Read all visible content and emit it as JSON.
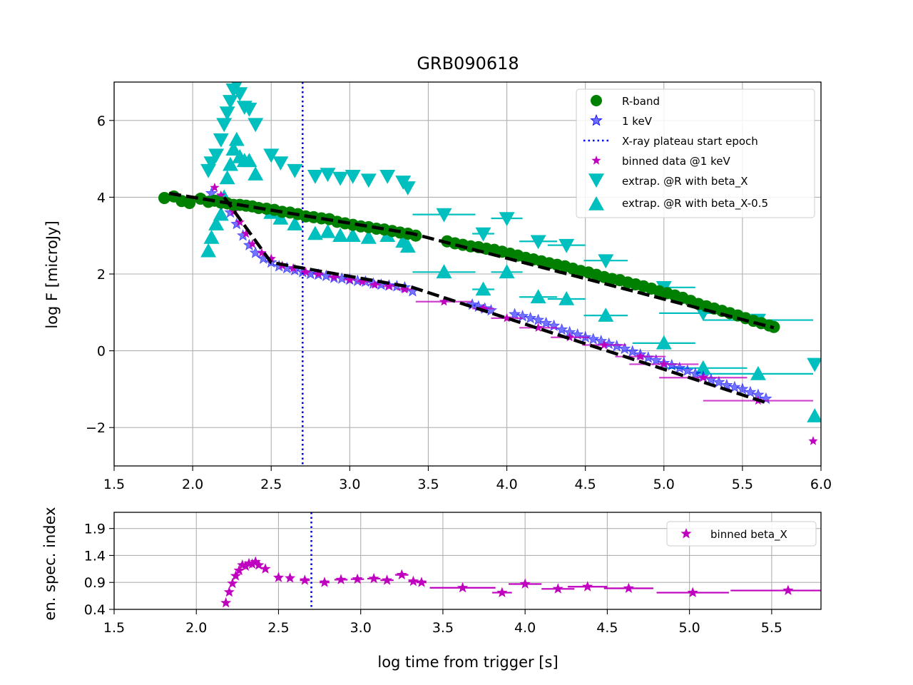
{
  "chart_data": [
    {
      "type": "scatter",
      "title": "GRB090618",
      "xlabel": "",
      "ylabel": "log F [microJy]",
      "xlim": [
        1.5,
        6.0
      ],
      "ylim": [
        -3.0,
        7.0
      ],
      "x_ticks": [
        "1.5",
        "2.0",
        "2.5",
        "3.0",
        "3.5",
        "4.0",
        "4.5",
        "5.0",
        "5.5",
        "6.0"
      ],
      "y_ticks": [
        "−2",
        "0",
        "2",
        "4",
        "6"
      ],
      "grid": true,
      "legend_position": "top-right",
      "colors": {
        "r_band": "#008000",
        "xray": "#0000ff",
        "binned": "#bf00bf",
        "extrap": "#00bfbf",
        "fit": "#000000",
        "plateau": "#0000ff"
      },
      "legend": [
        "R-band",
        "1 keV",
        "X-ray plateau start epoch",
        "binned data @1 keV",
        "extrap. @R with beta_X",
        "extrap. @R with beta_X-0.5"
      ],
      "plateau_start_x": 2.7,
      "series": [
        {
          "name": "R-band",
          "marker": "circle",
          "x": [
            1.82,
            1.88,
            1.93,
            1.98,
            2.05,
            2.1,
            2.14,
            2.18,
            2.22,
            2.26,
            2.3,
            2.34,
            2.38,
            2.42,
            2.47,
            2.52,
            2.57,
            2.62,
            2.67,
            2.72,
            2.77,
            2.82,
            2.87,
            2.92,
            2.97,
            3.02,
            3.07,
            3.12,
            3.17,
            3.22,
            3.27,
            3.32,
            3.37,
            3.42,
            3.62,
            3.67,
            3.72,
            3.77,
            3.82,
            3.87,
            3.92,
            3.97,
            4.02,
            4.07,
            4.12,
            4.17,
            4.22,
            4.27,
            4.32,
            4.37,
            4.42,
            4.47,
            4.52,
            4.57,
            4.62,
            4.67,
            4.72,
            4.77,
            4.82,
            4.87,
            4.92,
            4.97,
            5.02,
            5.07,
            5.12,
            5.17,
            5.22,
            5.27,
            5.32,
            5.37,
            5.42,
            5.47,
            5.52,
            5.57,
            5.62,
            5.67,
            5.7
          ],
          "y": [
            3.98,
            4.02,
            3.9,
            3.85,
            3.96,
            3.88,
            3.91,
            3.86,
            3.84,
            3.8,
            3.8,
            3.78,
            3.76,
            3.72,
            3.7,
            3.67,
            3.62,
            3.6,
            3.56,
            3.5,
            3.48,
            3.45,
            3.43,
            3.36,
            3.32,
            3.28,
            3.24,
            3.22,
            3.18,
            3.16,
            3.12,
            3.08,
            3.05,
            3.0,
            2.85,
            2.8,
            2.76,
            2.72,
            2.7,
            2.66,
            2.63,
            2.58,
            2.53,
            2.48,
            2.42,
            2.38,
            2.33,
            2.28,
            2.24,
            2.2,
            2.14,
            2.08,
            2.04,
            1.98,
            1.92,
            1.87,
            1.84,
            1.78,
            1.73,
            1.68,
            1.62,
            1.55,
            1.5,
            1.44,
            1.38,
            1.3,
            1.22,
            1.16,
            1.1,
            1.04,
            0.98,
            0.92,
            0.85,
            0.78,
            0.72,
            0.66,
            0.62
          ]
        },
        {
          "name": "1 keV",
          "marker": "star",
          "x": [
            2.12,
            2.16,
            2.2,
            2.24,
            2.28,
            2.32,
            2.36,
            2.4,
            2.45,
            2.5,
            2.55,
            2.6,
            2.65,
            2.7,
            2.75,
            2.8,
            2.85,
            2.9,
            2.95,
            3.0,
            3.05,
            3.1,
            3.15,
            3.2,
            3.25,
            3.3,
            3.35,
            3.4,
            3.78,
            3.82,
            3.86,
            3.9,
            4.05,
            4.1,
            4.15,
            4.2,
            4.25,
            4.3,
            4.35,
            4.4,
            4.45,
            4.5,
            4.55,
            4.6,
            4.65,
            4.7,
            4.75,
            4.8,
            4.85,
            4.9,
            4.95,
            5.0,
            5.05,
            5.1,
            5.15,
            5.2,
            5.25,
            5.3,
            5.35,
            5.4,
            5.45,
            5.5,
            5.55,
            5.6,
            5.65
          ],
          "y": [
            4.1,
            3.95,
            3.8,
            3.6,
            3.3,
            3.0,
            2.75,
            2.55,
            2.4,
            2.3,
            2.2,
            2.15,
            2.1,
            2.05,
            2.0,
            1.98,
            1.95,
            1.9,
            1.88,
            1.85,
            1.82,
            1.8,
            1.75,
            1.72,
            1.7,
            1.68,
            1.65,
            1.55,
            1.2,
            1.15,
            1.1,
            1.05,
            0.95,
            0.9,
            0.85,
            0.8,
            0.72,
            0.65,
            0.55,
            0.48,
            0.42,
            0.35,
            0.3,
            0.25,
            0.18,
            0.12,
            0.05,
            -0.02,
            -0.1,
            -0.18,
            -0.25,
            -0.32,
            -0.38,
            -0.45,
            -0.52,
            -0.6,
            -0.68,
            -0.75,
            -0.82,
            -0.9,
            -0.95,
            -1.0,
            -1.08,
            -1.15,
            -1.25
          ]
        },
        {
          "name": "binned data @1 keV",
          "marker": "star",
          "x": [
            2.14,
            2.18,
            2.22,
            2.26,
            2.3,
            2.34,
            2.38,
            2.44,
            2.5,
            2.57,
            2.64,
            2.72,
            2.8,
            2.9,
            3.0,
            3.08,
            3.16,
            3.25,
            3.35,
            3.6,
            3.85,
            4.0,
            4.2,
            4.4,
            4.62,
            4.85,
            5.0,
            5.25,
            5.6,
            5.95
          ],
          "y": [
            4.25,
            4.05,
            3.85,
            3.62,
            3.35,
            3.05,
            2.78,
            2.55,
            2.4,
            2.22,
            2.15,
            2.05,
            2.0,
            1.92,
            1.85,
            1.8,
            1.72,
            1.68,
            1.6,
            1.28,
            1.1,
            0.85,
            0.6,
            0.35,
            0.15,
            -0.15,
            -0.35,
            -0.7,
            -1.3,
            -2.35
          ],
          "x_err": [
            0.01,
            0.01,
            0.01,
            0.01,
            0.01,
            0.01,
            0.01,
            0.01,
            0.02,
            0.02,
            0.02,
            0.03,
            0.03,
            0.04,
            0.04,
            0.04,
            0.04,
            0.04,
            0.05,
            0.18,
            0.07,
            0.1,
            0.12,
            0.12,
            0.14,
            0.16,
            0.22,
            0.28,
            0.35,
            0.02
          ]
        },
        {
          "name": "extrap. @R with beta_X",
          "marker": "triangle-down",
          "x": [
            2.1,
            2.12,
            2.15,
            2.18,
            2.2,
            2.22,
            2.24,
            2.26,
            2.28,
            2.3,
            2.33,
            2.36,
            2.4,
            2.5,
            2.56,
            2.65,
            2.78,
            2.86,
            2.94,
            3.02,
            3.12,
            3.24,
            3.34,
            3.37,
            3.6,
            3.85,
            4.0,
            4.2,
            4.38,
            4.63,
            5.0,
            5.25,
            5.6,
            5.96
          ],
          "y": [
            4.7,
            4.9,
            5.1,
            5.5,
            5.9,
            6.2,
            6.5,
            6.8,
            6.95,
            6.7,
            6.35,
            6.3,
            5.9,
            5.1,
            4.9,
            4.7,
            4.55,
            4.6,
            4.5,
            4.55,
            4.45,
            4.55,
            4.4,
            4.25,
            3.55,
            3.05,
            3.45,
            2.85,
            2.75,
            2.35,
            1.65,
            0.98,
            0.8,
            -0.35
          ],
          "x_err": [
            0,
            0,
            0,
            0,
            0,
            0,
            0,
            0,
            0,
            0,
            0,
            0,
            0,
            0,
            0,
            0,
            0,
            0,
            0,
            0,
            0,
            0,
            0,
            0,
            0.2,
            0.07,
            0.1,
            0.12,
            0.12,
            0.14,
            0.2,
            0.28,
            0.35,
            0.02
          ]
        },
        {
          "name": "extrap. @R with beta_X-0.5",
          "marker": "triangle-up",
          "x": [
            2.1,
            2.12,
            2.15,
            2.18,
            2.2,
            2.22,
            2.24,
            2.26,
            2.28,
            2.3,
            2.33,
            2.36,
            2.4,
            2.5,
            2.56,
            2.65,
            2.78,
            2.86,
            2.94,
            3.02,
            3.12,
            3.24,
            3.34,
            3.37,
            3.6,
            3.85,
            4.0,
            4.2,
            4.38,
            4.63,
            5.0,
            5.25,
            5.6,
            5.96
          ],
          "y": [
            2.6,
            2.95,
            3.3,
            3.55,
            4.0,
            4.5,
            4.85,
            5.25,
            5.5,
            5.05,
            4.95,
            4.95,
            4.6,
            3.6,
            3.45,
            3.3,
            3.05,
            3.1,
            3.0,
            3.0,
            2.95,
            3.0,
            2.85,
            2.72,
            2.05,
            1.6,
            2.05,
            1.4,
            1.35,
            0.92,
            0.2,
            -0.45,
            -0.6,
            -1.7
          ],
          "x_err": [
            0,
            0,
            0,
            0,
            0,
            0,
            0,
            0,
            0,
            0,
            0,
            0,
            0,
            0,
            0,
            0,
            0,
            0,
            0,
            0,
            0,
            0,
            0,
            0,
            0.2,
            0.07,
            0.1,
            0.12,
            0.12,
            0.14,
            0.2,
            0.28,
            0.35,
            0.02
          ]
        }
      ],
      "fit_lines": [
        {
          "x": [
            1.85,
            2.3,
            3.4,
            5.7
          ],
          "y": [
            4.1,
            3.8,
            3.05,
            0.6
          ]
        },
        {
          "x": [
            2.2,
            2.5,
            3.4,
            5.65
          ],
          "y": [
            4.0,
            2.3,
            1.65,
            -1.35
          ]
        }
      ]
    },
    {
      "type": "scatter",
      "title": "",
      "xlabel": "log time from trigger [s]",
      "ylabel": "en. spec. index",
      "xlim": [
        1.5,
        5.8
      ],
      "ylim": [
        0.4,
        2.2
      ],
      "x_ticks": [
        "1.5",
        "2.0",
        "2.5",
        "3.0",
        "3.5",
        "4.0",
        "4.5",
        "5.0",
        "5.5"
      ],
      "y_ticks": [
        "0.4",
        "0.9",
        "1.4",
        "1.9"
      ],
      "grid": true,
      "legend_position": "top-right",
      "legend": [
        "binned beta_X"
      ],
      "plateau_start_x": 2.7,
      "series": [
        {
          "name": "binned beta_X",
          "marker": "star",
          "x": [
            2.18,
            2.2,
            2.22,
            2.24,
            2.26,
            2.28,
            2.3,
            2.32,
            2.34,
            2.36,
            2.38,
            2.42,
            2.5,
            2.57,
            2.66,
            2.78,
            2.88,
            2.98,
            3.08,
            3.16,
            3.25,
            3.32,
            3.37,
            3.62,
            3.86,
            4.0,
            4.2,
            4.38,
            4.63,
            5.02,
            5.6
          ],
          "y": [
            0.52,
            0.72,
            0.88,
            1.02,
            1.12,
            1.22,
            1.2,
            1.25,
            1.24,
            1.28,
            1.22,
            1.15,
            0.99,
            0.98,
            0.94,
            0.9,
            0.95,
            0.96,
            0.97,
            0.94,
            1.04,
            0.92,
            0.9,
            0.8,
            0.71,
            0.87,
            0.78,
            0.82,
            0.79,
            0.71,
            0.75
          ],
          "x_err": [
            0.005,
            0.005,
            0.005,
            0.005,
            0.005,
            0.005,
            0.005,
            0.005,
            0.005,
            0.005,
            0.005,
            0.01,
            0.02,
            0.02,
            0.03,
            0.03,
            0.04,
            0.04,
            0.04,
            0.04,
            0.04,
            0.03,
            0.03,
            0.2,
            0.06,
            0.1,
            0.1,
            0.12,
            0.15,
            0.22,
            0.35
          ]
        }
      ]
    }
  ]
}
